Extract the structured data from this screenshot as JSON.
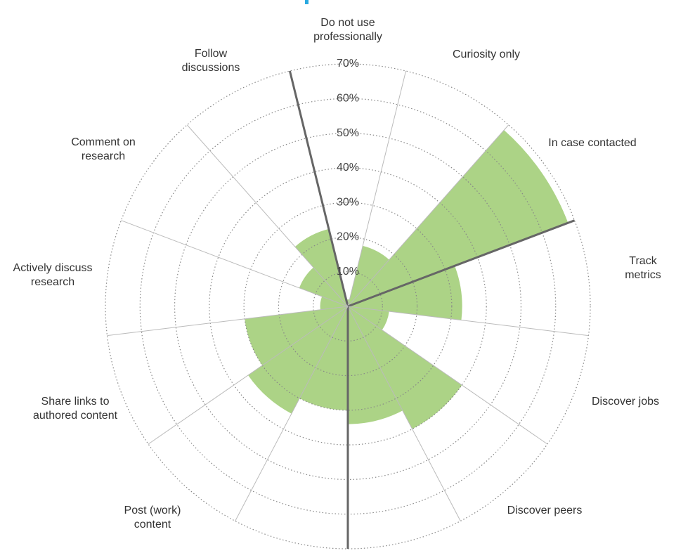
{
  "chart_data": {
    "type": "polar_area",
    "categories": [
      "Do not use\nprofessionally",
      "Curiosity only",
      "In case contacted",
      "Track metrics",
      "Discover jobs",
      "Discover peers",
      null,
      null,
      "Post (work)\ncontent",
      "Share links to\nauthored content",
      "Actively discuss\nresearch",
      "Comment on\nresearch",
      "Follow\ndiscussions"
    ],
    "values": [
      2,
      18,
      68,
      33,
      12,
      40,
      34,
      30,
      35,
      30,
      8,
      15,
      23
    ],
    "color": "#acd386",
    "ylim": [
      0,
      70
    ],
    "yticks": [
      {
        "value": 10,
        "label": "10%"
      },
      {
        "value": 20,
        "label": "20%"
      },
      {
        "value": 30,
        "label": "30%"
      },
      {
        "value": 40,
        "label": "40%"
      },
      {
        "value": 50,
        "label": "50%"
      },
      {
        "value": 60,
        "label": "60%"
      },
      {
        "value": 70,
        "label": "70%"
      }
    ],
    "grid": true
  }
}
